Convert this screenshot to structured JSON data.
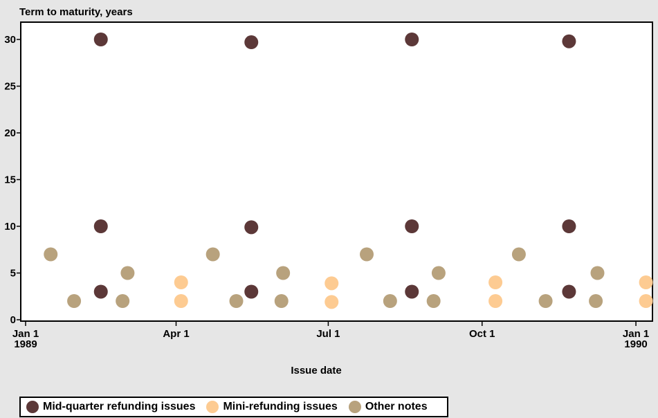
{
  "chart_data": {
    "type": "scatter",
    "ylabel": "Term to maturity, years",
    "xlabel": "Issue date",
    "ylim": [
      0,
      32
    ],
    "yticks": [
      0,
      5,
      10,
      15,
      20,
      25,
      30
    ],
    "xlim": [
      "1989-01-01",
      "1990-01-08"
    ],
    "xticks": [
      {
        "date": "1989-01-01",
        "label1": "Jan 1",
        "label2": "1989"
      },
      {
        "date": "1989-04-01",
        "label1": "Apr 1",
        "label2": ""
      },
      {
        "date": "1989-07-01",
        "label1": "Jul 1",
        "label2": ""
      },
      {
        "date": "1989-10-01",
        "label1": "Oct 1",
        "label2": ""
      },
      {
        "date": "1990-01-01",
        "label1": "Jan 1",
        "label2": "1990"
      }
    ],
    "series": [
      {
        "name": "Mid-quarter refunding issues",
        "color": "#5c3838",
        "points": [
          {
            "x": "1989-02-15",
            "y": 30
          },
          {
            "x": "1989-02-15",
            "y": 10
          },
          {
            "x": "1989-02-15",
            "y": 3
          },
          {
            "x": "1989-05-16",
            "y": 29.7
          },
          {
            "x": "1989-05-16",
            "y": 9.9
          },
          {
            "x": "1989-05-16",
            "y": 3
          },
          {
            "x": "1989-08-20",
            "y": 30
          },
          {
            "x": "1989-08-20",
            "y": 10
          },
          {
            "x": "1989-08-20",
            "y": 3
          },
          {
            "x": "1989-11-22",
            "y": 29.8
          },
          {
            "x": "1989-11-22",
            "y": 10
          },
          {
            "x": "1989-11-22",
            "y": 3
          }
        ]
      },
      {
        "name": "Mini-refunding issues",
        "color": "#fdcb92",
        "points": [
          {
            "x": "1989-04-04",
            "y": 4
          },
          {
            "x": "1989-04-04",
            "y": 2
          },
          {
            "x": "1989-07-03",
            "y": 3.9
          },
          {
            "x": "1989-07-03",
            "y": 1.9
          },
          {
            "x": "1989-10-09",
            "y": 4
          },
          {
            "x": "1989-10-09",
            "y": 2
          },
          {
            "x": "1990-01-07",
            "y": 4
          },
          {
            "x": "1990-01-07",
            "y": 2
          }
        ]
      },
      {
        "name": "Other notes",
        "color": "#b8a27d",
        "points": [
          {
            "x": "1989-01-16",
            "y": 7
          },
          {
            "x": "1989-01-30",
            "y": 2
          },
          {
            "x": "1989-02-28",
            "y": 2
          },
          {
            "x": "1989-03-03",
            "y": 5
          },
          {
            "x": "1989-04-23",
            "y": 7
          },
          {
            "x": "1989-05-07",
            "y": 2
          },
          {
            "x": "1989-06-03",
            "y": 2
          },
          {
            "x": "1989-06-04",
            "y": 5
          },
          {
            "x": "1989-07-24",
            "y": 7
          },
          {
            "x": "1989-08-07",
            "y": 2
          },
          {
            "x": "1989-09-02",
            "y": 2
          },
          {
            "x": "1989-09-05",
            "y": 5
          },
          {
            "x": "1989-10-23",
            "y": 7
          },
          {
            "x": "1989-11-08",
            "y": 2
          },
          {
            "x": "1989-12-08",
            "y": 2
          },
          {
            "x": "1989-12-09",
            "y": 5
          }
        ]
      }
    ],
    "legend_placement": "bottom-left"
  }
}
